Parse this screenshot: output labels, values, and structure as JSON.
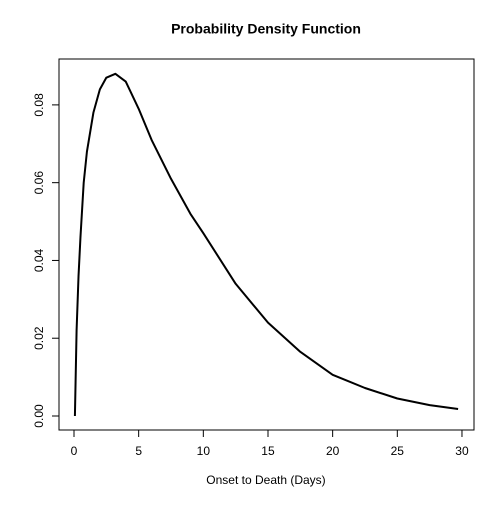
{
  "chart_data": {
    "type": "line",
    "title": "Probability Density Function",
    "x_label": "Onset to Death (Days)",
    "x": [
      0.07,
      0.2,
      0.35,
      0.5,
      0.75,
      1,
      1.5,
      2,
      2.5,
      3.2,
      4,
      5,
      6,
      7.5,
      9,
      10,
      12.5,
      15,
      17.5,
      20,
      22.5,
      25,
      27.5,
      29.7
    ],
    "series": [
      {
        "name": "density",
        "color": "#000000",
        "values": [
          0.0,
          0.022,
          0.036,
          0.046,
          0.06,
          0.068,
          0.078,
          0.084,
          0.087,
          0.088,
          0.086,
          0.079,
          0.071,
          0.061,
          0.052,
          0.047,
          0.034,
          0.024,
          0.0165,
          0.0106,
          0.0072,
          0.0045,
          0.0028,
          0.0018
        ]
      }
    ],
    "xlim": [
      -1.16,
      30.93
    ],
    "ylim": [
      -0.0036,
      0.0918
    ],
    "xticks": [
      0,
      5,
      10,
      15,
      20,
      25,
      30
    ],
    "yticks": [
      {
        "value": 0,
        "label": "0.00"
      },
      {
        "value": 0.02,
        "label": "0.02"
      },
      {
        "value": 0.04,
        "label": "0.04"
      },
      {
        "value": 0.06,
        "label": "0.06"
      },
      {
        "value": 0.08,
        "label": "0.08"
      }
    ]
  }
}
